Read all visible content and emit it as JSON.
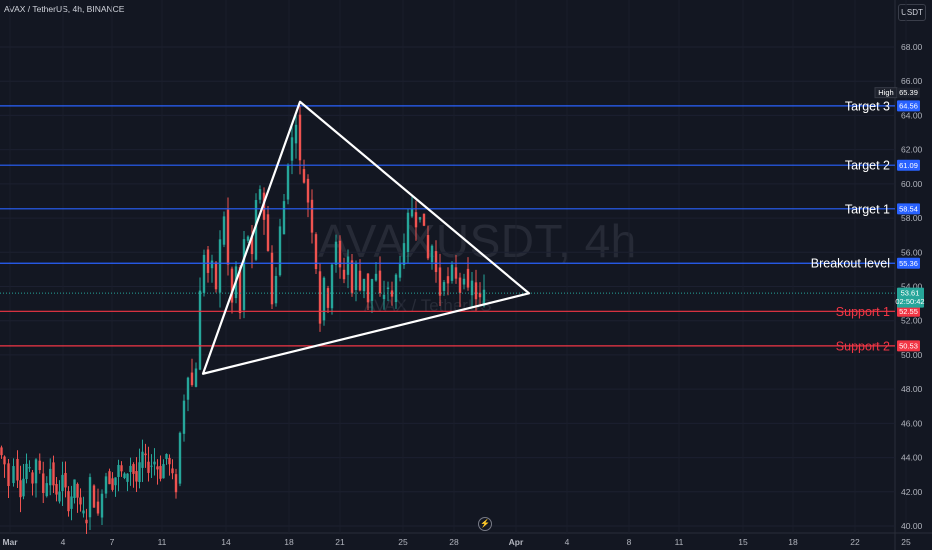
{
  "header": {
    "symbol": "AVAX / TetherUS, 4h, BINANCE",
    "currency": "USDT"
  },
  "watermark": {
    "ticker": "AVAXUSDT, 4h",
    "name": "AVAX / TetherUS"
  },
  "chart_data": {
    "type": "candlestick",
    "yrange": [
      39.8,
      69.5
    ],
    "y_ticks": [
      "68.00",
      "66.00",
      "64.00",
      "62.00",
      "60.00",
      "58.00",
      "56.00",
      "54.00",
      "52.00",
      "50.00",
      "48.00",
      "46.00",
      "44.00",
      "42.00",
      "40.00"
    ],
    "x_ticks": [
      "Mar",
      "4",
      "7",
      "11",
      "14",
      "18",
      "21",
      "25",
      "28",
      "Apr",
      "4",
      "8",
      "11",
      "15",
      "18",
      "22",
      "25"
    ],
    "high_badge": {
      "label": "High",
      "value": "65.39"
    },
    "last_price": {
      "value": "53.61",
      "countdown": "02:50:42",
      "color": "#26a69a"
    },
    "levels": [
      {
        "name": "Target 3",
        "value": 64.56,
        "tag": "64.56",
        "color": "#2962ff"
      },
      {
        "name": "Target 2",
        "value": 61.09,
        "tag": "61.09",
        "color": "#2962ff"
      },
      {
        "name": "Target 1",
        "value": 58.54,
        "tag": "58.54",
        "color": "#2962ff"
      },
      {
        "name": "Breakout level",
        "value": 55.36,
        "tag": "55.36",
        "color": "#2962ff"
      },
      {
        "name": "Support 1",
        "value": 52.55,
        "tag": "52.55",
        "color": "#f23645"
      },
      {
        "name": "Support 2",
        "value": 50.53,
        "tag": "50.53",
        "color": "#f23645"
      }
    ],
    "triangle": [
      {
        "x": "Mar 12",
        "y": 48.9
      },
      {
        "x": "Mar 18",
        "y": 64.8
      },
      {
        "x": "Apr 1",
        "y": 53.6
      }
    ],
    "price_anchors": [
      [
        0,
        44.6
      ],
      [
        6,
        43.6
      ],
      [
        11,
        42.4
      ],
      [
        16,
        43.8
      ],
      [
        22,
        42.0
      ],
      [
        28,
        43.6
      ],
      [
        34,
        42.6
      ],
      [
        38,
        44.0
      ],
      [
        45,
        42.0
      ],
      [
        52,
        43.4
      ],
      [
        58,
        41.6
      ],
      [
        64,
        42.8
      ],
      [
        70,
        41.2
      ],
      [
        76,
        42.4
      ],
      [
        82,
        41.0
      ],
      [
        88,
        40.4
      ],
      [
        92,
        42.6
      ],
      [
        96,
        41.4
      ],
      [
        100,
        40.5
      ],
      [
        104,
        42.2
      ],
      [
        108,
        43.0
      ],
      [
        114,
        42.4
      ],
      [
        120,
        43.4
      ],
      [
        126,
        42.8
      ],
      [
        132,
        43.6
      ],
      [
        138,
        42.6
      ],
      [
        144,
        44.2
      ],
      [
        150,
        43.4
      ],
      [
        156,
        43.8
      ],
      [
        162,
        43.0
      ],
      [
        168,
        44.2
      ],
      [
        174,
        42.8
      ],
      [
        178,
        42.2
      ],
      [
        182,
        45.4
      ],
      [
        186,
        47.5
      ],
      [
        190,
        49.0
      ],
      [
        194,
        48.2
      ],
      [
        198,
        49.4
      ],
      [
        202,
        53.6
      ],
      [
        206,
        56.0
      ],
      [
        210,
        54.8
      ],
      [
        214,
        55.2
      ],
      [
        218,
        53.9
      ],
      [
        222,
        56.6
      ],
      [
        226,
        58.2
      ],
      [
        230,
        55.2
      ],
      [
        234,
        53.0
      ],
      [
        238,
        55.1
      ],
      [
        242,
        52.4
      ],
      [
        246,
        56.6
      ],
      [
        250,
        57.0
      ],
      [
        254,
        55.6
      ],
      [
        258,
        58.8
      ],
      [
        262,
        59.8
      ],
      [
        266,
        58.0
      ],
      [
        270,
        56.0
      ],
      [
        274,
        53.2
      ],
      [
        278,
        54.6
      ],
      [
        282,
        57.4
      ],
      [
        286,
        59.0
      ],
      [
        290,
        61.4
      ],
      [
        294,
        62.6
      ],
      [
        298,
        63.8
      ],
      [
        302,
        61.2
      ],
      [
        306,
        60.2
      ],
      [
        310,
        59.0
      ],
      [
        314,
        57.4
      ],
      [
        318,
        55.2
      ],
      [
        322,
        52.0
      ],
      [
        326,
        54.2
      ],
      [
        330,
        53.0
      ],
      [
        334,
        55.4
      ],
      [
        338,
        56.4
      ],
      [
        342,
        55.0
      ],
      [
        346,
        54.6
      ],
      [
        350,
        55.8
      ],
      [
        354,
        53.6
      ],
      [
        358,
        55.2
      ],
      [
        362,
        53.8
      ],
      [
        366,
        54.6
      ],
      [
        370,
        53.2
      ],
      [
        374,
        54.4
      ],
      [
        378,
        54.6
      ],
      [
        382,
        53.4
      ],
      [
        386,
        53.6
      ],
      [
        390,
        54.0
      ],
      [
        394,
        53.2
      ],
      [
        398,
        54.6
      ],
      [
        402,
        55.6
      ],
      [
        406,
        56.2
      ],
      [
        410,
        58.0
      ],
      [
        414,
        58.6
      ],
      [
        418,
        57.8
      ],
      [
        422,
        58.4
      ],
      [
        426,
        57.2
      ],
      [
        430,
        55.6
      ],
      [
        434,
        56.4
      ],
      [
        438,
        54.8
      ],
      [
        442,
        53.6
      ],
      [
        446,
        54.6
      ],
      [
        450,
        54.0
      ],
      [
        454,
        55.0
      ],
      [
        458,
        54.6
      ],
      [
        462,
        53.8
      ],
      [
        466,
        54.8
      ],
      [
        470,
        53.6
      ],
      [
        474,
        54.2
      ],
      [
        478,
        53.4
      ],
      [
        482,
        53.2
      ],
      [
        486,
        53.61
      ]
    ]
  }
}
